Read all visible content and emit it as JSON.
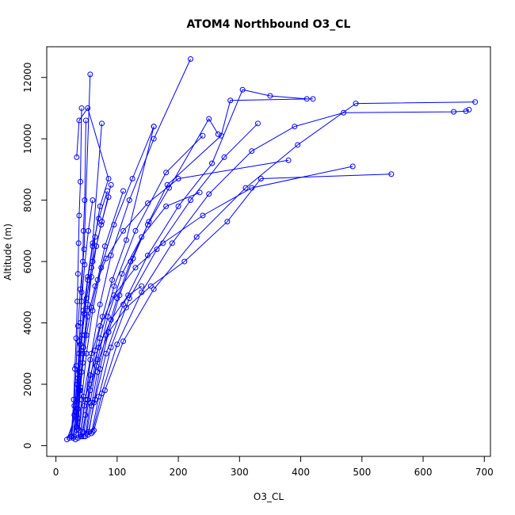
{
  "chart_data": {
    "type": "line",
    "title": "ATOM4 Northbound O3_CL",
    "xlabel": "O3_CL",
    "ylabel": "Altitude (m)",
    "xlim": [
      -15,
      710
    ],
    "ylim": [
      -350,
      13000
    ],
    "xticks": [
      0,
      100,
      200,
      300,
      400,
      500,
      600,
      700
    ],
    "yticks": [
      0,
      2000,
      4000,
      6000,
      8000,
      10000,
      12000
    ],
    "x_tick_labels": [
      "0",
      "100",
      "200",
      "300",
      "400",
      "500",
      "600",
      "700"
    ],
    "y_tick_labels": [
      "0",
      "2000",
      "4000",
      "6000",
      "8000",
      "10000",
      "12000"
    ],
    "grid": false,
    "series_color": "#0000ff",
    "marker": "open-circle",
    "series": [
      {
        "x": [
          18,
          36,
          42,
          47,
          52,
          58,
          64,
          72,
          86,
          52,
          38,
          34
        ],
        "y": [
          200,
          1200,
          2400,
          3600,
          4600,
          5800,
          6800,
          7800,
          8700,
          11000,
          10600,
          9400
        ]
      },
      {
        "x": [
          22,
          30,
          34,
          38,
          40,
          42,
          44,
          45,
          47,
          49
        ],
        "y": [
          250,
          1000,
          2000,
          3000,
          4000,
          5000,
          6000,
          7000,
          8000,
          10600
        ]
      },
      {
        "x": [
          25,
          29,
          31,
          33,
          35,
          36,
          37,
          38,
          40,
          42
        ],
        "y": [
          300,
          1500,
          2500,
          3500,
          4700,
          5600,
          6600,
          7500,
          8600,
          11000
        ]
      },
      {
        "x": [
          32,
          36,
          40,
          44,
          50,
          58,
          68,
          80,
          110
        ],
        "y": [
          200,
          900,
          1800,
          2700,
          3600,
          4500,
          5400,
          6500,
          8300
        ]
      },
      {
        "x": [
          40,
          48,
          58,
          72,
          90,
          120,
          160,
          220
        ],
        "y": [
          300,
          1500,
          3000,
          4600,
          6200,
          8000,
          10000,
          12600
        ]
      },
      {
        "x": [
          45,
          56,
          72,
          95,
          130,
          180,
          240
        ],
        "y": [
          300,
          1800,
          3500,
          5200,
          7000,
          8900,
          10100
        ]
      },
      {
        "x": [
          36,
          42,
          50,
          60,
          74,
          95,
          125,
          160
        ],
        "y": [
          250,
          1500,
          3000,
          4400,
          5800,
          7200,
          8700,
          10400
        ]
      },
      {
        "x": [
          48,
          56,
          68,
          85,
          108,
          140,
          180,
          235
        ],
        "y": [
          300,
          1400,
          2800,
          4200,
          5600,
          6800,
          7800,
          8250
        ]
      },
      {
        "x": [
          52,
          64,
          82,
          110,
          150,
          200,
          255,
          305,
          350,
          410
        ],
        "y": [
          350,
          1500,
          3000,
          4600,
          6200,
          7800,
          9200,
          11600,
          11400,
          11300
        ]
      },
      {
        "x": [
          58,
          70,
          90,
          120,
          165,
          220,
          275,
          330
        ],
        "y": [
          400,
          1600,
          3200,
          4800,
          6400,
          8000,
          9400,
          10500
        ]
      },
      {
        "x": [
          60,
          75,
          100,
          140,
          190,
          250,
          320,
          390,
          470,
          650,
          670,
          675
        ],
        "y": [
          450,
          1700,
          3300,
          5000,
          6600,
          8200,
          9600,
          10400,
          10850,
          10880,
          10900,
          10950
        ]
      },
      {
        "x": [
          62,
          80,
          110,
          160,
          230,
          310,
          395,
          490,
          685
        ],
        "y": [
          500,
          1800,
          3400,
          5100,
          6800,
          8400,
          9800,
          11150,
          11200
        ]
      },
      {
        "x": [
          34,
          38,
          44,
          52,
          64,
          82,
          110,
          150,
          200,
          380
        ],
        "y": [
          600,
          1800,
          3000,
          4200,
          5200,
          6100,
          7000,
          7900,
          8700,
          9300
        ]
      },
      {
        "x": [
          38,
          45,
          56,
          72,
          95,
          130,
          175,
          240,
          320,
          485
        ],
        "y": [
          500,
          1600,
          2800,
          3900,
          4900,
          5800,
          6600,
          7500,
          8400,
          9100
        ]
      },
      {
        "x": [
          44,
          52,
          66,
          86,
          115,
          155,
          210,
          280,
          335,
          548
        ],
        "y": [
          450,
          1500,
          2600,
          3700,
          4500,
          5200,
          6000,
          7300,
          8700,
          8850
        ]
      },
      {
        "x": [
          40,
          46,
          56,
          70,
          90,
          118,
          140
        ],
        "y": [
          350,
          1300,
          2300,
          3200,
          4100,
          4900,
          5200
        ]
      },
      {
        "x": [
          30,
          34,
          38,
          43,
          50,
          60,
          74,
          90
        ],
        "y": [
          300,
          1200,
          2400,
          3600,
          4800,
          6000,
          7200,
          8500
        ]
      },
      {
        "x": [
          28,
          32,
          36,
          40,
          45,
          52,
          60,
          75
        ],
        "y": [
          250,
          1100,
          2200,
          3300,
          4400,
          5500,
          6600,
          10500
        ]
      },
      {
        "x": [
          26,
          30,
          33,
          36,
          40,
          46,
          56
        ],
        "y": [
          300,
          1300,
          2600,
          3900,
          5100,
          6400,
          12100
        ]
      },
      {
        "x": [
          42,
          48,
          55,
          64,
          76,
          92,
          115,
          160
        ],
        "y": [
          300,
          1000,
          2000,
          3100,
          4200,
          5400,
          6700,
          10400
        ]
      },
      {
        "x": [
          50,
          58,
          68,
          82,
          100,
          122,
          150,
          185,
          250,
          265
        ],
        "y": [
          400,
          1300,
          2400,
          3600,
          4800,
          6000,
          7200,
          8400,
          10650,
          10150
        ]
      },
      {
        "x": [
          54,
          62,
          72,
          86,
          104,
          126,
          152,
          182,
          270,
          285,
          420
        ],
        "y": [
          450,
          1400,
          2500,
          3700,
          4900,
          6100,
          7300,
          8500,
          10100,
          11250,
          11300
        ]
      },
      {
        "x": [
          34,
          37,
          41,
          46,
          52,
          60,
          70,
          84
        ],
        "y": [
          500,
          1800,
          3100,
          4300,
          5400,
          6500,
          7400,
          8300
        ]
      },
      {
        "x": [
          36,
          40,
          45,
          51,
          58,
          66,
          75,
          86
        ],
        "y": [
          550,
          1900,
          3200,
          4400,
          5500,
          6500,
          7300,
          8100
        ]
      },
      {
        "x": [
          33,
          35,
          38,
          42,
          47,
          53,
          60
        ],
        "y": [
          600,
          2000,
          3400,
          4700,
          5900,
          7000,
          8000
        ]
      }
    ]
  }
}
